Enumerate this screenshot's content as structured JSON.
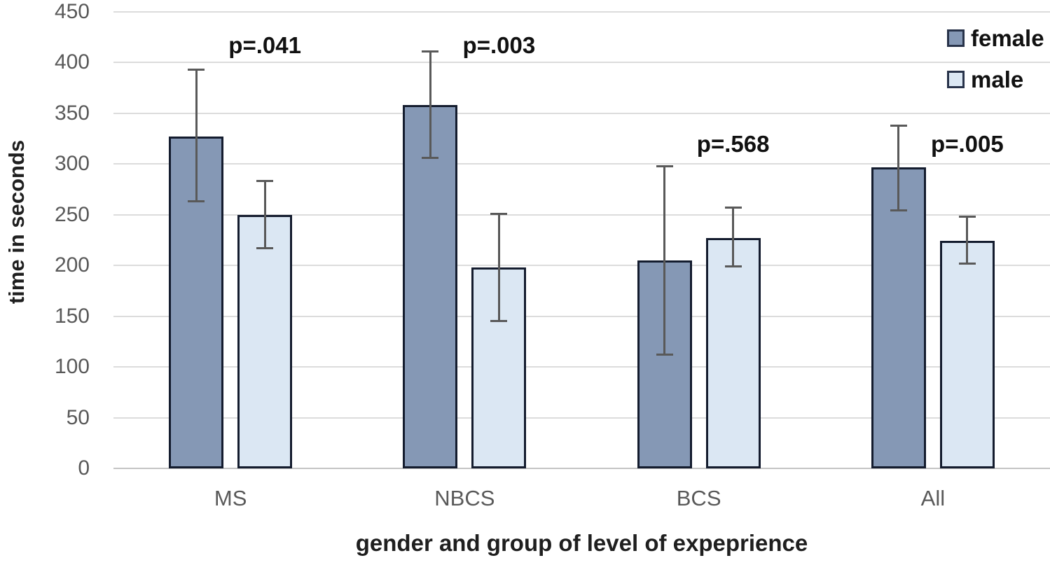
{
  "chart_data": {
    "type": "bar",
    "title": "",
    "categories": [
      "MS",
      "NBCS",
      "BCS",
      "All"
    ],
    "series": [
      {
        "name": "female",
        "color": "#8598b5",
        "values": [
          327,
          358,
          205,
          297
        ],
        "ci_low": [
          263,
          306,
          112,
          254
        ],
        "ci_high": [
          393,
          411,
          298,
          338
        ]
      },
      {
        "name": "male",
        "color": "#dbe7f3",
        "values": [
          250,
          198,
          227,
          224
        ],
        "ci_low": [
          217,
          145,
          199,
          202
        ],
        "ci_high": [
          283,
          251,
          257,
          248
        ]
      }
    ],
    "annotations": [
      {
        "text": "p=.041",
        "group": 0,
        "y_value": 416
      },
      {
        "text": "p=.003",
        "group": 1,
        "y_value": 416
      },
      {
        "text": "p=.568",
        "group": 2,
        "y_value": 319
      },
      {
        "text": "p=.005",
        "group": 3,
        "y_value": 319
      }
    ],
    "xlabel": "gender and group of level of expeprience",
    "ylabel": "time in seconds",
    "ylim": [
      0,
      450
    ],
    "ytick_step": 50,
    "grid": true,
    "legend_position": "top-right",
    "colors": {
      "error_bar": "#595959",
      "bar_border": "#141c2e",
      "gridline": "#dcdcdc",
      "baseline": "#c4c4c4",
      "axis_text": "#595959",
      "label_text": "#1f1f1f"
    }
  }
}
